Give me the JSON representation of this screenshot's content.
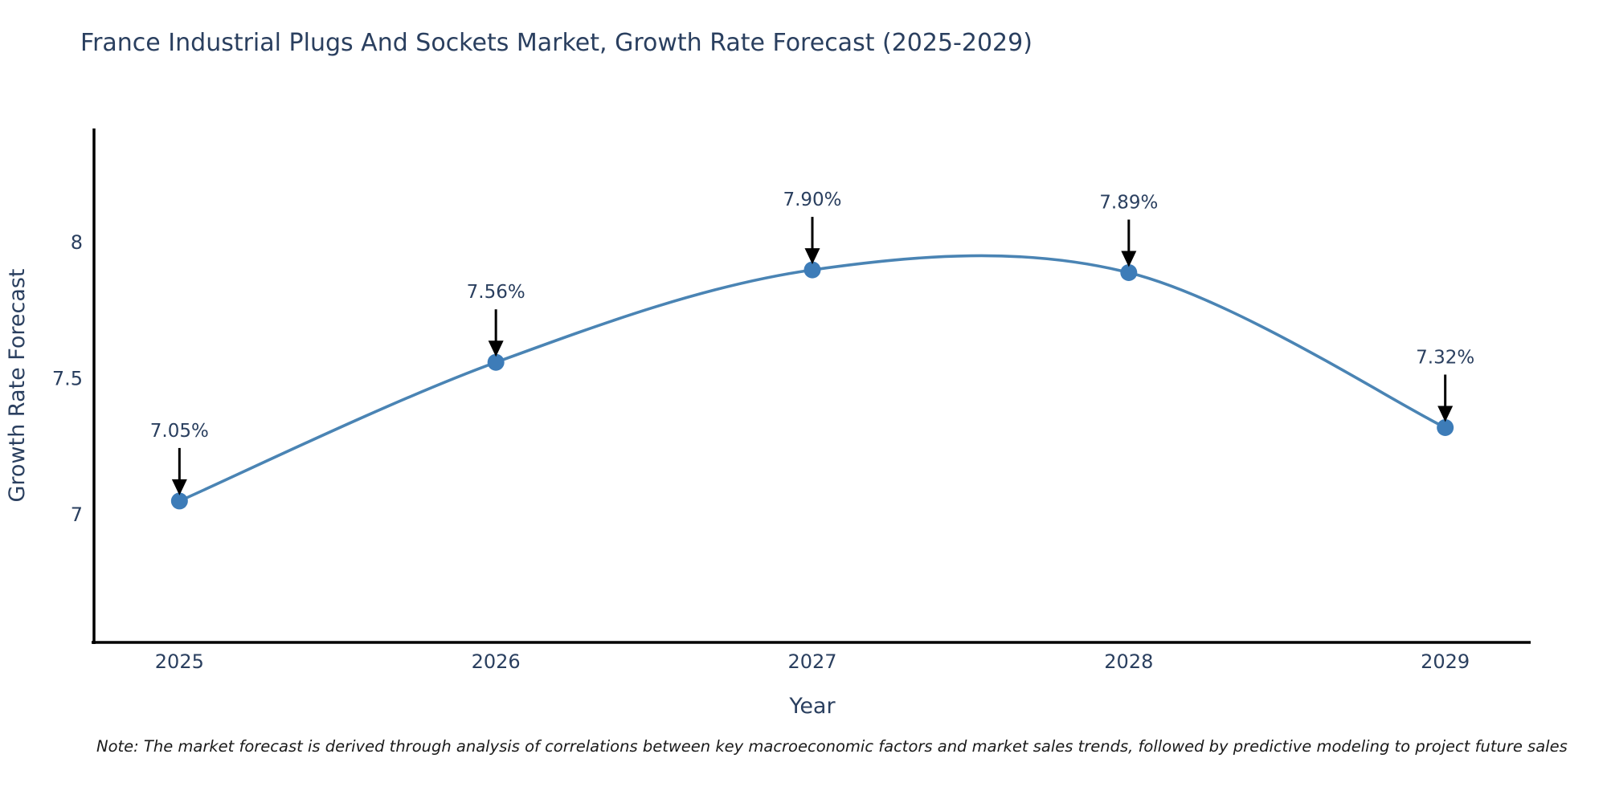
{
  "title": "France Industrial Plugs And Sockets Market, Growth Rate Forecast (2025-2029)",
  "note": "Note: The market forecast is derived through analysis of correlations between key macroeconomic factors and market sales trends, followed by predictive modeling to project future sales",
  "chart_data": {
    "type": "line",
    "title": "France Industrial Plugs And Sockets Market, Growth Rate Forecast (2025-2029)",
    "x": [
      2025,
      2026,
      2027,
      2028,
      2029
    ],
    "values": [
      7.05,
      7.56,
      7.9,
      7.89,
      7.32
    ],
    "point_labels": [
      "7.05%",
      "7.56%",
      "7.90%",
      "7.89%",
      "7.32%"
    ],
    "xlabel": "Year",
    "ylabel": "Growth Rate Forecast",
    "xtick_labels": [
      "2025",
      "2026",
      "2027",
      "2028",
      "2029"
    ],
    "yticks": [
      7,
      7.5,
      8
    ],
    "ytick_labels": [
      "7",
      "7.5",
      "8"
    ],
    "xlim": [
      2024.73,
      2029.27
    ],
    "ylim": [
      6.53,
      8.42
    ],
    "grid": false,
    "legend": "none",
    "line_shape": "spline",
    "colors": {
      "line": "#4a84b4",
      "marker": "#3d7cb8",
      "annotation_arrow": "#000000",
      "axis": "#000000",
      "tick_text": "#2a3f5f",
      "title_text": "#2a3f5f",
      "note_text": "#1a1a1a"
    }
  }
}
